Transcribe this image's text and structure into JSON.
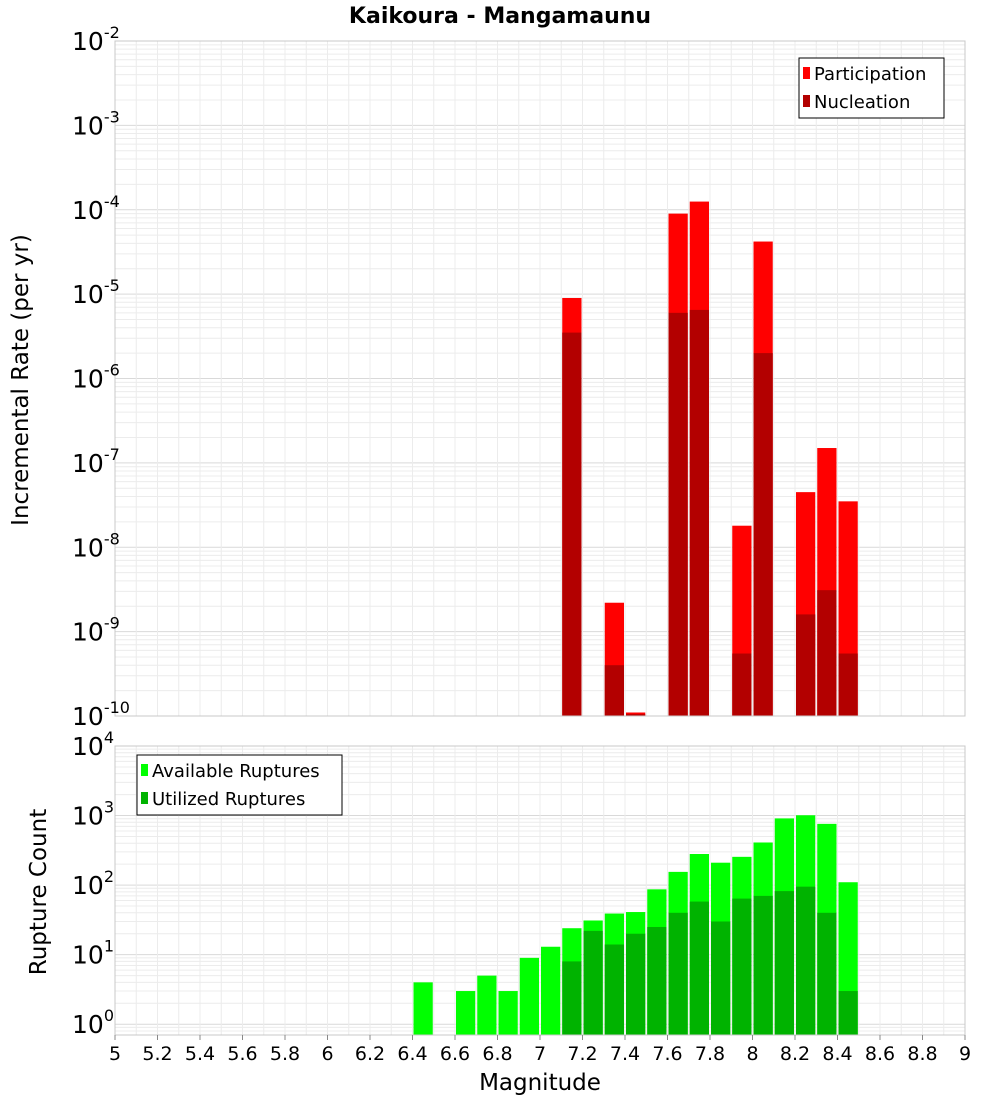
{
  "chart_data": [
    {
      "type": "bar",
      "title": "Kaikoura - Mangamaunu",
      "xlabel": "Magnitude",
      "ylabel": "Incremental Rate (per yr)",
      "yscale": "log",
      "xlim": [
        5,
        9
      ],
      "ylim": [
        1e-10,
        0.01
      ],
      "grid": true,
      "legend_position": "top-right",
      "bin_width": 0.1,
      "overlay": true,
      "x_ticks": [
        "5",
        "5.2",
        "5.4",
        "5.6",
        "5.8",
        "6",
        "6.2",
        "6.4",
        "6.6",
        "6.8",
        "7",
        "7.2",
        "7.4",
        "7.6",
        "7.8",
        "8",
        "8.2",
        "8.4",
        "8.6",
        "8.8",
        "9"
      ],
      "y_ticks": [
        {
          "base": "10",
          "exp": "-10",
          "value": 1e-10
        },
        {
          "base": "10",
          "exp": "-9",
          "value": 1e-09
        },
        {
          "base": "10",
          "exp": "-8",
          "value": 1e-08
        },
        {
          "base": "10",
          "exp": "-7",
          "value": 1e-07
        },
        {
          "base": "10",
          "exp": "-6",
          "value": 1e-06
        },
        {
          "base": "10",
          "exp": "-5",
          "value": 1e-05
        },
        {
          "base": "10",
          "exp": "-4",
          "value": 0.0001
        },
        {
          "base": "10",
          "exp": "-3",
          "value": 0.001
        },
        {
          "base": "10",
          "exp": "-2",
          "value": 0.01
        }
      ],
      "series": [
        {
          "name": "Participation",
          "color": "#ff0000",
          "points": [
            {
              "x": 7.15,
              "y": 9e-06
            },
            {
              "x": 7.35,
              "y": 2.2e-09
            },
            {
              "x": 7.45,
              "y": 1.1e-10
            },
            {
              "x": 7.65,
              "y": 9e-05
            },
            {
              "x": 7.75,
              "y": 0.000125
            },
            {
              "x": 7.95,
              "y": 1.8e-08
            },
            {
              "x": 8.05,
              "y": 4.2e-05
            },
            {
              "x": 8.25,
              "y": 4.5e-08
            },
            {
              "x": 8.35,
              "y": 1.5e-07
            },
            {
              "x": 8.45,
              "y": 3.5e-08
            }
          ]
        },
        {
          "name": "Nucleation",
          "color": "#b30000",
          "points": [
            {
              "x": 7.15,
              "y": 3.5e-06
            },
            {
              "x": 7.35,
              "y": 4e-10
            },
            {
              "x": 7.45,
              "y": 1.05e-10
            },
            {
              "x": 7.65,
              "y": 6e-06
            },
            {
              "x": 7.75,
              "y": 6.5e-06
            },
            {
              "x": 7.95,
              "y": 5.5e-10
            },
            {
              "x": 8.05,
              "y": 2e-06
            },
            {
              "x": 8.25,
              "y": 1.6e-09
            },
            {
              "x": 8.35,
              "y": 3.1e-09
            },
            {
              "x": 8.45,
              "y": 5.5e-10
            }
          ]
        }
      ]
    },
    {
      "type": "bar",
      "xlabel": "Magnitude",
      "ylabel": "Rupture Count",
      "yscale": "log",
      "xlim": [
        5,
        9
      ],
      "ylim": [
        0.7,
        10000
      ],
      "grid": true,
      "legend_position": "top-left",
      "bin_width": 0.1,
      "overlay": true,
      "y_ticks": [
        {
          "base": "10",
          "exp": "0",
          "value": 1
        },
        {
          "base": "10",
          "exp": "1",
          "value": 10
        },
        {
          "base": "10",
          "exp": "2",
          "value": 100
        },
        {
          "base": "10",
          "exp": "3",
          "value": 1000
        },
        {
          "base": "10",
          "exp": "4",
          "value": 10000
        }
      ],
      "series": [
        {
          "name": "Available Ruptures",
          "color": "#00ff00",
          "points": [
            {
              "x": 6.45,
              "y": 4
            },
            {
              "x": 6.65,
              "y": 3
            },
            {
              "x": 6.75,
              "y": 5
            },
            {
              "x": 6.85,
              "y": 3
            },
            {
              "x": 6.95,
              "y": 9
            },
            {
              "x": 7.05,
              "y": 13
            },
            {
              "x": 7.15,
              "y": 24
            },
            {
              "x": 7.25,
              "y": 31
            },
            {
              "x": 7.35,
              "y": 39
            },
            {
              "x": 7.45,
              "y": 41
            },
            {
              "x": 7.55,
              "y": 87
            },
            {
              "x": 7.65,
              "y": 155
            },
            {
              "x": 7.75,
              "y": 280
            },
            {
              "x": 7.85,
              "y": 210
            },
            {
              "x": 7.95,
              "y": 255
            },
            {
              "x": 8.05,
              "y": 410
            },
            {
              "x": 8.15,
              "y": 910
            },
            {
              "x": 8.25,
              "y": 1010
            },
            {
              "x": 8.35,
              "y": 760
            },
            {
              "x": 8.45,
              "y": 110
            }
          ]
        },
        {
          "name": "Utilized Ruptures",
          "color": "#00b300",
          "points": [
            {
              "x": 7.15,
              "y": 8
            },
            {
              "x": 7.25,
              "y": 22
            },
            {
              "x": 7.35,
              "y": 14
            },
            {
              "x": 7.45,
              "y": 20
            },
            {
              "x": 7.55,
              "y": 25
            },
            {
              "x": 7.65,
              "y": 40
            },
            {
              "x": 7.75,
              "y": 58
            },
            {
              "x": 7.85,
              "y": 30
            },
            {
              "x": 7.95,
              "y": 64
            },
            {
              "x": 8.05,
              "y": 70
            },
            {
              "x": 8.15,
              "y": 82
            },
            {
              "x": 8.25,
              "y": 95
            },
            {
              "x": 8.35,
              "y": 40
            },
            {
              "x": 8.45,
              "y": 3
            }
          ]
        }
      ]
    }
  ]
}
